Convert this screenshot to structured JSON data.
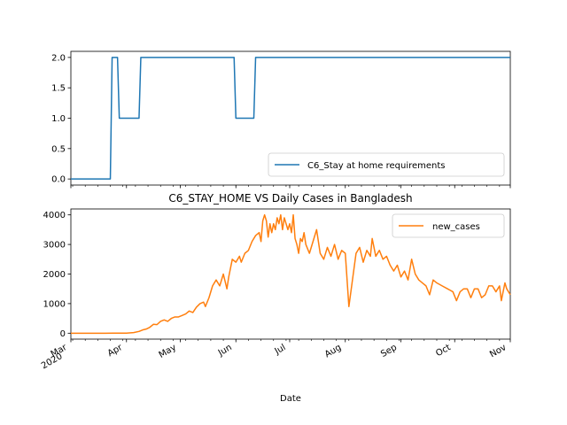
{
  "chart_data": [
    {
      "type": "line",
      "title": "",
      "xlabel": "",
      "ylabel": "",
      "xlim": [
        "2020-03-01",
        "2020-11-01"
      ],
      "ylim": [
        -0.1,
        2.1
      ],
      "yticks": [
        "0.0",
        "0.5",
        "1.0",
        "1.5",
        "2.0"
      ],
      "grid": false,
      "legend_position": "lower-right",
      "series": [
        {
          "name": "C6_Stay at home requirements",
          "color": "#1f77b4",
          "points": [
            [
              "2020-03-01",
              0
            ],
            [
              "2020-03-23",
              0
            ],
            [
              "2020-03-24",
              2
            ],
            [
              "2020-03-27",
              2
            ],
            [
              "2020-03-28",
              1
            ],
            [
              "2020-04-08",
              1
            ],
            [
              "2020-04-09",
              2
            ],
            [
              "2020-05-31",
              2
            ],
            [
              "2020-06-01",
              1
            ],
            [
              "2020-06-11",
              1
            ],
            [
              "2020-06-12",
              2
            ],
            [
              "2020-11-01",
              2
            ]
          ]
        }
      ]
    },
    {
      "type": "line",
      "title": "C6_STAY_HOME VS Daily Cases in Bangladesh",
      "xlabel": "Date",
      "ylabel": "",
      "xlim": [
        "2020-03-01",
        "2020-11-01"
      ],
      "ylim": [
        -200,
        4200
      ],
      "yticks": [
        "0",
        "1000",
        "2000",
        "3000",
        "4000"
      ],
      "xtick_labels": [
        "Mar\n2020",
        "Apr",
        "May",
        "Jun",
        "Jul",
        "Aug",
        "Sep",
        "Oct",
        "Nov"
      ],
      "grid": false,
      "legend_position": "upper-right",
      "series": [
        {
          "name": "new_cases",
          "color": "#ff7f0e",
          "points": [
            [
              "2020-03-01",
              0
            ],
            [
              "2020-03-20",
              0
            ],
            [
              "2020-04-01",
              2
            ],
            [
              "2020-04-05",
              20
            ],
            [
              "2020-04-08",
              60
            ],
            [
              "2020-04-10",
              110
            ],
            [
              "2020-04-12",
              140
            ],
            [
              "2020-04-14",
              200
            ],
            [
              "2020-04-16",
              300
            ],
            [
              "2020-04-18",
              290
            ],
            [
              "2020-04-20",
              400
            ],
            [
              "2020-04-22",
              450
            ],
            [
              "2020-04-24",
              400
            ],
            [
              "2020-04-26",
              500
            ],
            [
              "2020-04-28",
              550
            ],
            [
              "2020-04-30",
              550
            ],
            [
              "2020-05-02",
              600
            ],
            [
              "2020-05-04",
              650
            ],
            [
              "2020-05-06",
              750
            ],
            [
              "2020-05-08",
              700
            ],
            [
              "2020-05-10",
              880
            ],
            [
              "2020-05-12",
              1000
            ],
            [
              "2020-05-14",
              1050
            ],
            [
              "2020-05-15",
              900
            ],
            [
              "2020-05-17",
              1200
            ],
            [
              "2020-05-19",
              1600
            ],
            [
              "2020-05-21",
              1800
            ],
            [
              "2020-05-23",
              1600
            ],
            [
              "2020-05-25",
              2000
            ],
            [
              "2020-05-27",
              1500
            ],
            [
              "2020-05-28",
              1900
            ],
            [
              "2020-05-30",
              2500
            ],
            [
              "2020-06-01",
              2400
            ],
            [
              "2020-06-03",
              2600
            ],
            [
              "2020-06-04",
              2400
            ],
            [
              "2020-06-06",
              2700
            ],
            [
              "2020-06-08",
              2800
            ],
            [
              "2020-06-10",
              3100
            ],
            [
              "2020-06-12",
              3300
            ],
            [
              "2020-06-14",
              3400
            ],
            [
              "2020-06-15",
              3100
            ],
            [
              "2020-06-16",
              3800
            ],
            [
              "2020-06-17",
              4000
            ],
            [
              "2020-06-18",
              3800
            ],
            [
              "2020-06-19",
              3250
            ],
            [
              "2020-06-20",
              3700
            ],
            [
              "2020-06-21",
              3400
            ],
            [
              "2020-06-22",
              3700
            ],
            [
              "2020-06-23",
              3500
            ],
            [
              "2020-06-24",
              3900
            ],
            [
              "2020-06-25",
              3700
            ],
            [
              "2020-06-26",
              4000
            ],
            [
              "2020-06-27",
              3500
            ],
            [
              "2020-06-28",
              3900
            ],
            [
              "2020-06-29",
              3700
            ],
            [
              "2020-06-30",
              3500
            ],
            [
              "2020-07-01",
              3700
            ],
            [
              "2020-07-02",
              3400
            ],
            [
              "2020-07-03",
              4000
            ],
            [
              "2020-07-04",
              3200
            ],
            [
              "2020-07-05",
              3000
            ],
            [
              "2020-07-06",
              2700
            ],
            [
              "2020-07-07",
              3200
            ],
            [
              "2020-07-08",
              3100
            ],
            [
              "2020-07-09",
              3400
            ],
            [
              "2020-07-10",
              3000
            ],
            [
              "2020-07-12",
              2700
            ],
            [
              "2020-07-14",
              3100
            ],
            [
              "2020-07-16",
              3500
            ],
            [
              "2020-07-18",
              2700
            ],
            [
              "2020-07-20",
              2500
            ],
            [
              "2020-07-22",
              2900
            ],
            [
              "2020-07-24",
              2600
            ],
            [
              "2020-07-26",
              3000
            ],
            [
              "2020-07-28",
              2500
            ],
            [
              "2020-07-30",
              2800
            ],
            [
              "2020-08-01",
              2700
            ],
            [
              "2020-08-03",
              900
            ],
            [
              "2020-08-05",
              1800
            ],
            [
              "2020-08-07",
              2700
            ],
            [
              "2020-08-09",
              2900
            ],
            [
              "2020-08-11",
              2400
            ],
            [
              "2020-08-13",
              2800
            ],
            [
              "2020-08-15",
              2600
            ],
            [
              "2020-08-16",
              3200
            ],
            [
              "2020-08-18",
              2600
            ],
            [
              "2020-08-20",
              2800
            ],
            [
              "2020-08-22",
              2500
            ],
            [
              "2020-08-24",
              2600
            ],
            [
              "2020-08-26",
              2300
            ],
            [
              "2020-08-28",
              2100
            ],
            [
              "2020-08-30",
              2300
            ],
            [
              "2020-09-01",
              1900
            ],
            [
              "2020-09-03",
              2100
            ],
            [
              "2020-09-05",
              1800
            ],
            [
              "2020-09-07",
              2500
            ],
            [
              "2020-09-09",
              2000
            ],
            [
              "2020-09-11",
              1800
            ],
            [
              "2020-09-13",
              1700
            ],
            [
              "2020-09-15",
              1600
            ],
            [
              "2020-09-17",
              1300
            ],
            [
              "2020-09-19",
              1800
            ],
            [
              "2020-09-21",
              1700
            ],
            [
              "2020-09-24",
              1600
            ],
            [
              "2020-09-27",
              1500
            ],
            [
              "2020-09-30",
              1400
            ],
            [
              "2020-10-02",
              1100
            ],
            [
              "2020-10-04",
              1400
            ],
            [
              "2020-10-06",
              1500
            ],
            [
              "2020-10-08",
              1500
            ],
            [
              "2020-10-10",
              1200
            ],
            [
              "2020-10-12",
              1500
            ],
            [
              "2020-10-14",
              1500
            ],
            [
              "2020-10-16",
              1200
            ],
            [
              "2020-10-18",
              1300
            ],
            [
              "2020-10-20",
              1600
            ],
            [
              "2020-10-22",
              1600
            ],
            [
              "2020-10-24",
              1400
            ],
            [
              "2020-10-26",
              1600
            ],
            [
              "2020-10-27",
              1100
            ],
            [
              "2020-10-28",
              1400
            ],
            [
              "2020-10-29",
              1700
            ],
            [
              "2020-10-30",
              1500
            ],
            [
              "2020-11-01",
              1300
            ]
          ]
        }
      ]
    }
  ]
}
